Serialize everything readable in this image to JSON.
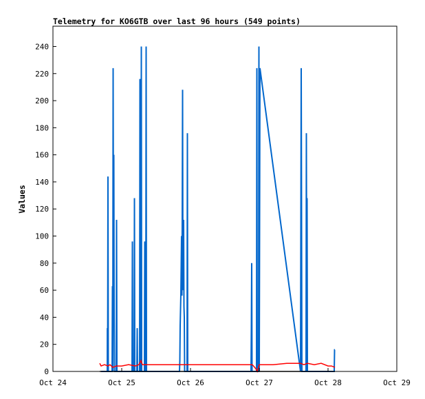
{
  "chart_data": {
    "type": "line",
    "title": "Telemetry for KO6GTB over last 96 hours (549 points)",
    "xlabel": "",
    "ylabel": "Values",
    "xlim": [
      "Oct 24",
      "Oct 29"
    ],
    "ylim": [
      0,
      255
    ],
    "x_ticks": [
      "Oct 24",
      "Oct 25",
      "Oct 26",
      "Oct 27",
      "Oct 28",
      "Oct 29"
    ],
    "y_ticks": [
      0,
      20,
      40,
      60,
      80,
      100,
      120,
      140,
      160,
      180,
      200,
      220,
      240
    ],
    "grid": false,
    "legend": "none",
    "series": [
      {
        "color": "#0066cc",
        "points": [
          [
            24.7,
            0
          ],
          [
            24.79,
            0
          ],
          [
            24.791,
            32
          ],
          [
            24.795,
            0
          ],
          [
            24.8,
            144
          ],
          [
            24.805,
            0
          ],
          [
            24.86,
            0
          ],
          [
            24.865,
            63
          ],
          [
            24.87,
            0
          ],
          [
            24.875,
            224
          ],
          [
            24.88,
            80
          ],
          [
            24.885,
            160
          ],
          [
            24.89,
            40
          ],
          [
            24.895,
            0
          ],
          [
            24.92,
            0
          ],
          [
            24.925,
            112
          ],
          [
            24.93,
            0
          ],
          [
            25.15,
            0
          ],
          [
            25.155,
            96
          ],
          [
            25.16,
            0
          ],
          [
            25.18,
            0
          ],
          [
            25.185,
            128
          ],
          [
            25.19,
            0
          ],
          [
            25.22,
            0
          ],
          [
            25.225,
            32
          ],
          [
            25.23,
            0
          ],
          [
            25.26,
            0
          ],
          [
            25.265,
            216
          ],
          [
            25.27,
            0
          ],
          [
            25.28,
            0
          ],
          [
            25.285,
            240
          ],
          [
            25.29,
            0
          ],
          [
            25.33,
            0
          ],
          [
            25.335,
            96
          ],
          [
            25.34,
            0
          ],
          [
            25.35,
            0
          ],
          [
            25.355,
            240
          ],
          [
            25.36,
            0
          ],
          [
            25.84,
            0
          ],
          [
            25.845,
            8
          ],
          [
            25.85,
            34
          ],
          [
            25.86,
            57
          ],
          [
            25.865,
            79
          ],
          [
            25.87,
            100
          ],
          [
            25.875,
            56
          ],
          [
            25.88,
            112
          ],
          [
            25.885,
            208
          ],
          [
            25.89,
            60
          ],
          [
            25.895,
            96
          ],
          [
            25.9,
            112
          ],
          [
            25.905,
            48
          ],
          [
            25.91,
            40
          ],
          [
            25.915,
            0
          ],
          [
            25.95,
            0
          ],
          [
            25.955,
            176
          ],
          [
            25.96,
            0
          ],
          [
            26.88,
            0
          ],
          [
            26.885,
            32
          ],
          [
            26.89,
            80
          ],
          [
            26.895,
            0
          ],
          [
            26.96,
            0
          ],
          [
            26.965,
            224
          ],
          [
            26.97,
            0
          ],
          [
            26.99,
            0
          ],
          [
            26.995,
            240
          ],
          [
            27.0,
            0
          ],
          [
            27.01,
            224
          ],
          [
            27.6,
            0
          ],
          [
            27.61,
            224
          ],
          [
            27.62,
            0
          ],
          [
            27.68,
            0
          ],
          [
            27.685,
            176
          ],
          [
            27.69,
            40
          ],
          [
            27.695,
            128
          ],
          [
            27.7,
            0
          ],
          [
            28.09,
            0
          ],
          [
            28.095,
            16
          ],
          [
            28.1,
            16
          ]
        ]
      },
      {
        "color": "#ff0000",
        "points": [
          [
            24.68,
            6
          ],
          [
            24.7,
            4
          ],
          [
            24.75,
            5
          ],
          [
            24.8,
            4
          ],
          [
            24.83,
            5
          ],
          [
            24.87,
            3
          ],
          [
            24.92,
            4
          ],
          [
            25.0,
            4
          ],
          [
            25.1,
            5
          ],
          [
            25.2,
            4
          ],
          [
            25.25,
            5
          ],
          [
            25.28,
            8
          ],
          [
            25.3,
            5
          ],
          [
            25.4,
            5
          ],
          [
            25.6,
            5
          ],
          [
            25.8,
            5
          ],
          [
            26.0,
            5
          ],
          [
            26.2,
            5
          ],
          [
            26.4,
            5
          ],
          [
            26.6,
            5
          ],
          [
            26.8,
            5
          ],
          [
            26.9,
            5
          ],
          [
            26.95,
            2
          ],
          [
            26.97,
            0
          ],
          [
            27.0,
            5
          ],
          [
            27.1,
            5
          ],
          [
            27.2,
            5
          ],
          [
            27.4,
            6
          ],
          [
            27.5,
            6
          ],
          [
            27.6,
            6
          ],
          [
            27.65,
            5
          ],
          [
            27.7,
            6
          ],
          [
            27.8,
            5
          ],
          [
            27.9,
            6
          ],
          [
            28.0,
            4
          ],
          [
            28.05,
            4
          ],
          [
            28.1,
            3
          ]
        ]
      },
      {
        "color": "#000000",
        "points": [
          [
            24.68,
            0
          ],
          [
            28.1,
            0
          ]
        ]
      }
    ]
  }
}
